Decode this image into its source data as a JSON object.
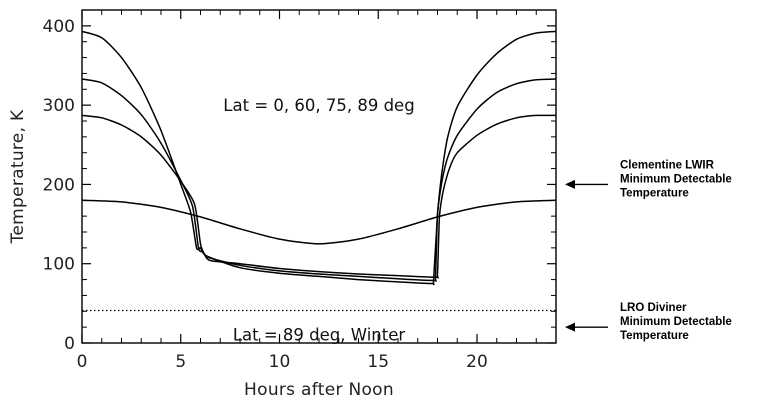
{
  "chart_data": {
    "type": "line",
    "xlabel": "Hours after Noon",
    "ylabel": "Temperature, K",
    "xlim": [
      0,
      24
    ],
    "ylim": [
      0,
      420
    ],
    "xticks": [
      0,
      5,
      10,
      15,
      20
    ],
    "yticks": [
      0,
      100,
      200,
      300,
      400
    ],
    "grid": false,
    "series": [
      {
        "latitude_deg": 0,
        "x": [
          0,
          1,
          2,
          3,
          4,
          5,
          5.5,
          5.8,
          6.0,
          6.3,
          8,
          10,
          12,
          14,
          16,
          17.7,
          17.8,
          18.0,
          18.2,
          18.5,
          19,
          20,
          21,
          22,
          23,
          24
        ],
        "y": [
          393,
          385,
          360,
          322,
          268,
          200,
          165,
          120,
          120,
          110,
          95,
          88,
          84,
          80,
          77,
          75,
          80,
          162,
          210,
          258,
          298,
          338,
          365,
          383,
          391,
          393
        ]
      },
      {
        "latitude_deg": 60,
        "x": [
          0,
          1,
          2,
          3,
          4,
          5,
          5.6,
          5.9,
          6.1,
          6.4,
          8,
          10,
          12,
          14,
          16,
          17.8,
          17.9,
          18.0,
          18.2,
          18.5,
          19,
          20,
          21,
          22,
          23,
          24
        ],
        "y": [
          333,
          328,
          312,
          288,
          252,
          205,
          172,
          120,
          115,
          108,
          98,
          91,
          87,
          84,
          81,
          79,
          84,
          162,
          200,
          233,
          262,
          295,
          316,
          327,
          332,
          333
        ]
      },
      {
        "latitude_deg": 75,
        "x": [
          0,
          1,
          2,
          3,
          4,
          5,
          5.7,
          6.0,
          6.2,
          6.5,
          8,
          10,
          12,
          14,
          16,
          17.9,
          18.0,
          18.1,
          18.3,
          18.6,
          19,
          20,
          21,
          22,
          23,
          24
        ],
        "y": [
          287,
          284,
          275,
          260,
          237,
          204,
          175,
          125,
          112,
          104,
          100,
          94,
          90,
          87,
          85,
          83,
          88,
          160,
          193,
          220,
          240,
          262,
          276,
          284,
          287,
          287
        ]
      },
      {
        "latitude_deg": 89,
        "x": [
          0,
          2,
          4,
          6,
          8,
          10,
          12,
          14,
          16,
          18,
          20,
          22,
          24
        ],
        "y": [
          180,
          178,
          171,
          159,
          144,
          131,
          125,
          131,
          144,
          159,
          171,
          178,
          180
        ]
      }
    ],
    "reference_lines": [
      {
        "y": 41,
        "style": "dotted"
      }
    ],
    "annotations": {
      "latitudes": "Lat = 0, 60, 75, 89 deg",
      "winter": "Lat = 89 deg, Winter"
    },
    "side_notes": [
      {
        "y": 200,
        "lines": [
          "Clementine LWIR",
          "Minimum Detectable",
          "Temperature"
        ]
      },
      {
        "y": 20,
        "lines": [
          "LRO Diviner",
          "Minimum Detectable",
          "Temperature"
        ]
      }
    ]
  }
}
